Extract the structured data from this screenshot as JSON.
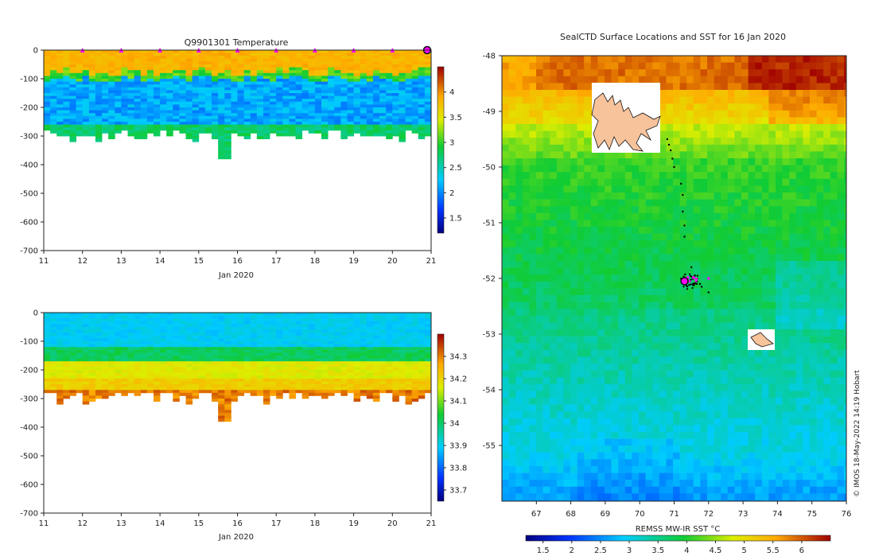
{
  "chart_data": [
    {
      "type": "heatmap",
      "title": "Q9901301  Temperature",
      "xlabel": "Jan 2020",
      "x_ticks": [
        "11",
        "12",
        "13",
        "14",
        "15",
        "16",
        "17",
        "18",
        "19",
        "20",
        "21"
      ],
      "y_ticks": [
        "0",
        "-100",
        "-200",
        "-300",
        "-400",
        "-500",
        "-600",
        "-700"
      ],
      "ylim": [
        -700,
        0
      ],
      "xlim": [
        11,
        21
      ],
      "colorbar_ticks": [
        "1.5",
        "2",
        "2.5",
        "3",
        "3.5",
        "4"
      ],
      "colorbar_range": [
        1.2,
        4.5
      ],
      "markers": [
        12,
        13,
        14,
        15,
        16,
        17,
        18,
        19,
        20
      ],
      "current_marker": 21,
      "profile_depth_max": [
        300,
        310,
        330,
        300,
        290,
        380,
        300,
        290,
        300,
        310,
        300
      ]
    },
    {
      "type": "heatmap",
      "title": "",
      "xlabel": "Jan 2020",
      "x_ticks": [
        "11",
        "12",
        "13",
        "14",
        "15",
        "16",
        "17",
        "18",
        "19",
        "20",
        "21"
      ],
      "y_ticks": [
        "0",
        "-100",
        "-200",
        "-300",
        "-400",
        "-500",
        "-600",
        "-700"
      ],
      "ylim": [
        -700,
        0
      ],
      "xlim": [
        11,
        21
      ],
      "colorbar_ticks": [
        "33.7",
        "33.8",
        "33.9",
        "34",
        "34.1",
        "34.2",
        "34.3"
      ],
      "colorbar_range": [
        33.65,
        34.4
      ]
    },
    {
      "type": "heatmap",
      "title": "SealCTD Surface Locations and SST for 16 Jan 2020",
      "x_ticks": [
        "67",
        "68",
        "69",
        "70",
        "71",
        "72",
        "73",
        "74",
        "75",
        "76"
      ],
      "y_ticks": [
        "-48",
        "-49",
        "-50",
        "-51",
        "-52",
        "-53",
        "-54",
        "-55"
      ],
      "xlim": [
        66,
        76
      ],
      "ylim": [
        -56,
        -48
      ],
      "colorbar_label": "REMSS MW-IR SST °C",
      "colorbar_ticks": [
        "1.5",
        "2",
        "2.5",
        "3",
        "3.5",
        "4",
        "4.5",
        "5",
        "5.5",
        "6"
      ],
      "colorbar_range": [
        1.2,
        6.5
      ],
      "current_position": [
        71.3,
        -52.05
      ],
      "track_points": [
        [
          70.8,
          -49.5
        ],
        [
          70.85,
          -49.6
        ],
        [
          70.9,
          -49.7
        ],
        [
          70.95,
          -49.85
        ],
        [
          71.0,
          -50.0
        ],
        [
          71.2,
          -50.3
        ],
        [
          71.25,
          -50.5
        ],
        [
          71.25,
          -50.8
        ],
        [
          71.3,
          -51.05
        ],
        [
          71.3,
          -51.25
        ],
        [
          71.5,
          -51.8
        ],
        [
          71.6,
          -51.95
        ],
        [
          71.75,
          -52.1
        ],
        [
          71.8,
          -52.15
        ],
        [
          72.0,
          -52.25
        ]
      ]
    }
  ],
  "credit": "© IMOS 18-May-2022 14:19 Hobart",
  "colors": {
    "marker": "#ff00ff",
    "land": "#f7c39b"
  }
}
